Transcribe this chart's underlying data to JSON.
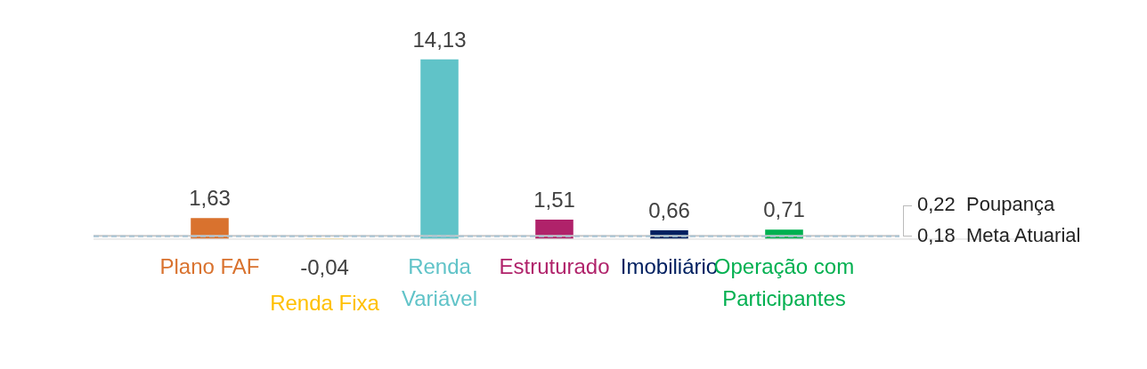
{
  "chart_data": {
    "type": "bar",
    "categories": [
      "Plano FAF",
      "Renda Fixa",
      "Renda Variável",
      "Estruturado",
      "Imobiliário",
      "Operação com Participantes"
    ],
    "values": [
      1.63,
      -0.04,
      14.13,
      1.51,
      0.66,
      0.71
    ],
    "colors": [
      "#d9722e",
      "#ffc000",
      "#60c3c8",
      "#b0226a",
      "#002060",
      "#00b050"
    ],
    "value_labels": [
      "1,63",
      "-0,04",
      "14,13",
      "1,51",
      "0,66",
      "0,71"
    ],
    "ref_lines": [
      {
        "axis": "y",
        "value": 0.22,
        "label": "0,22  Poupança",
        "color": "#c8c8c8",
        "line_style": "solid"
      },
      {
        "axis": "y",
        "value": 0.18,
        "label": "0,18  Meta Atuarial",
        "color": "#a9c4d4",
        "line_style": "dashed"
      }
    ]
  }
}
